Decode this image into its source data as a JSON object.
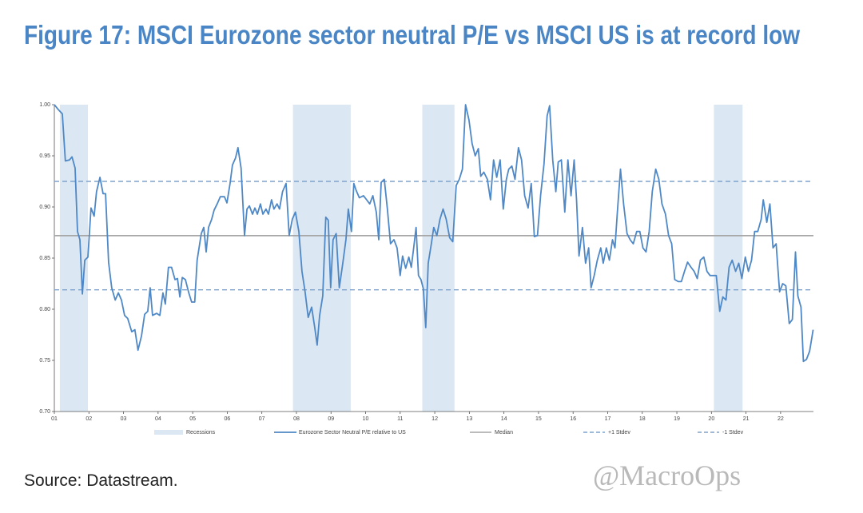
{
  "chart_data": {
    "type": "line",
    "title": "Figure 17: MSCI Eurozone sector neutral P/E vs MSCI US is at record low",
    "source": "Source: Datastream.",
    "watermark": "@MacroOps",
    "xlim": [
      1,
      22.95
    ],
    "xticks": [
      {
        "value": 1,
        "label": "01"
      },
      {
        "value": 2,
        "label": "02"
      },
      {
        "value": 3,
        "label": "03"
      },
      {
        "value": 4,
        "label": "04"
      },
      {
        "value": 5,
        "label": "05"
      },
      {
        "value": 6,
        "label": "06"
      },
      {
        "value": 7,
        "label": "07"
      },
      {
        "value": 8,
        "label": "08"
      },
      {
        "value": 9,
        "label": "09"
      },
      {
        "value": 10,
        "label": "10"
      },
      {
        "value": 11,
        "label": "11"
      },
      {
        "value": 12,
        "label": "12"
      },
      {
        "value": 13,
        "label": "13"
      },
      {
        "value": 14,
        "label": "14"
      },
      {
        "value": 15,
        "label": "15"
      },
      {
        "value": 16,
        "label": "16"
      },
      {
        "value": 17,
        "label": "17"
      },
      {
        "value": 18,
        "label": "18"
      },
      {
        "value": 19,
        "label": "19"
      },
      {
        "value": 20,
        "label": "20"
      },
      {
        "value": 21,
        "label": "21"
      },
      {
        "value": 22,
        "label": "22"
      }
    ],
    "ylim": [
      0.7,
      1.0
    ],
    "yticks": [
      {
        "value": 0.7,
        "label": "0.70"
      },
      {
        "value": 0.75,
        "label": "0.75"
      },
      {
        "value": 0.8,
        "label": "0.80"
      },
      {
        "value": 0.85,
        "label": "0.85"
      },
      {
        "value": 0.9,
        "label": "0.90"
      },
      {
        "value": 0.95,
        "label": "0.95"
      },
      {
        "value": 1.0,
        "label": "1.00"
      }
    ],
    "recessions": {
      "name": "Recessions",
      "color": "#dbe7f3",
      "periods": [
        [
          1.16,
          1.97
        ],
        [
          7.9,
          9.57
        ],
        [
          11.64,
          12.57
        ],
        [
          20.07,
          20.9
        ]
      ]
    },
    "reference_lines": [
      {
        "name": "Median",
        "value": 0.872,
        "color": "#a6a6a6",
        "dashed": false
      },
      {
        "name": "+1 Stdev",
        "value": 0.925,
        "color": "#7fa3cc",
        "dashed": true
      },
      {
        "name": "-1 Stdev",
        "value": 0.819,
        "color": "#7fa3cc",
        "dashed": true
      }
    ],
    "x": [
      1.0,
      1.12,
      1.23,
      1.32,
      1.44,
      1.51,
      1.6,
      1.67,
      1.74,
      1.81,
      1.88,
      1.97,
      2.06,
      2.15,
      2.22,
      2.32,
      2.41,
      2.48,
      2.57,
      2.66,
      2.76,
      2.85,
      2.94,
      3.03,
      3.12,
      3.24,
      3.33,
      3.42,
      3.52,
      3.61,
      3.7,
      3.77,
      3.84,
      3.96,
      4.05,
      4.14,
      4.21,
      4.3,
      4.39,
      4.49,
      4.56,
      4.63,
      4.7,
      4.79,
      4.88,
      4.97,
      5.06,
      5.13,
      5.25,
      5.32,
      5.39,
      5.46,
      5.55,
      5.62,
      5.71,
      5.8,
      5.92,
      5.99,
      6.08,
      6.15,
      6.24,
      6.31,
      6.4,
      6.5,
      6.57,
      6.64,
      6.73,
      6.8,
      6.87,
      6.96,
      7.03,
      7.12,
      7.19,
      7.28,
      7.35,
      7.44,
      7.51,
      7.6,
      7.7,
      7.79,
      7.88,
      7.97,
      8.07,
      8.16,
      8.25,
      8.34,
      8.44,
      8.53,
      8.6,
      8.67,
      8.76,
      8.85,
      8.92,
      8.99,
      9.06,
      9.15,
      9.24,
      9.34,
      9.43,
      9.5,
      9.59,
      9.66,
      9.73,
      9.82,
      9.94,
      10.03,
      10.12,
      10.21,
      10.31,
      10.38,
      10.45,
      10.54,
      10.63,
      10.72,
      10.82,
      10.91,
      11.0,
      11.07,
      11.16,
      11.25,
      11.32,
      11.39,
      11.46,
      11.53,
      11.6,
      11.67,
      11.74,
      11.81,
      11.9,
      11.97,
      12.06,
      12.15,
      12.24,
      12.33,
      12.43,
      12.52,
      12.62,
      12.71,
      12.8,
      12.89,
      12.99,
      13.08,
      13.17,
      13.26,
      13.33,
      13.42,
      13.52,
      13.61,
      13.7,
      13.79,
      13.89,
      13.98,
      14.07,
      14.14,
      14.23,
      14.32,
      14.42,
      14.51,
      14.6,
      14.7,
      14.79,
      14.88,
      14.97,
      15.06,
      15.16,
      15.25,
      15.32,
      15.41,
      15.5,
      15.57,
      15.66,
      15.76,
      15.85,
      15.94,
      16.03,
      16.1,
      16.17,
      16.27,
      16.36,
      16.45,
      16.52,
      16.61,
      16.7,
      16.8,
      16.87,
      16.96,
      17.05,
      17.14,
      17.21,
      17.28,
      17.37,
      17.46,
      17.56,
      17.65,
      17.74,
      17.84,
      17.93,
      18.02,
      18.11,
      18.2,
      18.29,
      18.39,
      18.48,
      18.57,
      18.67,
      18.76,
      18.85,
      18.94,
      19.04,
      19.13,
      19.22,
      19.31,
      19.41,
      19.5,
      19.59,
      19.68,
      19.78,
      19.87,
      19.96,
      20.05,
      20.14,
      20.24,
      20.33,
      20.42,
      20.51,
      20.6,
      20.7,
      20.79,
      20.88,
      20.98,
      21.07,
      21.16,
      21.25,
      21.34,
      21.44,
      21.5,
      21.6,
      21.69,
      21.78,
      21.87,
      21.97,
      22.06,
      22.15,
      22.25,
      22.34,
      22.43,
      22.5,
      22.59,
      22.66,
      22.75,
      22.84,
      22.94
    ],
    "series": [
      {
        "name": "Eurozone Sector Neutral P/E relative to US",
        "color": "#4f88c6",
        "values": [
          1.0,
          0.995,
          0.991,
          0.945,
          0.946,
          0.949,
          0.938,
          0.876,
          0.868,
          0.815,
          0.848,
          0.851,
          0.899,
          0.891,
          0.915,
          0.929,
          0.913,
          0.913,
          0.846,
          0.821,
          0.809,
          0.816,
          0.809,
          0.794,
          0.791,
          0.778,
          0.78,
          0.76,
          0.774,
          0.795,
          0.798,
          0.821,
          0.794,
          0.796,
          0.794,
          0.816,
          0.805,
          0.841,
          0.841,
          0.829,
          0.83,
          0.812,
          0.831,
          0.829,
          0.817,
          0.807,
          0.807,
          0.848,
          0.874,
          0.88,
          0.856,
          0.88,
          0.888,
          0.897,
          0.903,
          0.91,
          0.91,
          0.904,
          0.923,
          0.941,
          0.948,
          0.958,
          0.938,
          0.872,
          0.898,
          0.901,
          0.893,
          0.899,
          0.893,
          0.903,
          0.893,
          0.898,
          0.893,
          0.907,
          0.898,
          0.903,
          0.898,
          0.915,
          0.923,
          0.872,
          0.888,
          0.895,
          0.876,
          0.837,
          0.817,
          0.792,
          0.802,
          0.782,
          0.765,
          0.794,
          0.813,
          0.89,
          0.887,
          0.821,
          0.868,
          0.874,
          0.821,
          0.845,
          0.868,
          0.898,
          0.876,
          0.923,
          0.916,
          0.909,
          0.911,
          0.907,
          0.903,
          0.911,
          0.895,
          0.868,
          0.924,
          0.927,
          0.898,
          0.864,
          0.868,
          0.86,
          0.833,
          0.852,
          0.84,
          0.851,
          0.841,
          0.86,
          0.88,
          0.833,
          0.829,
          0.82,
          0.782,
          0.845,
          0.864,
          0.88,
          0.872,
          0.888,
          0.898,
          0.888,
          0.87,
          0.866,
          0.921,
          0.927,
          0.937,
          1.0,
          0.985,
          0.962,
          0.95,
          0.957,
          0.93,
          0.934,
          0.927,
          0.907,
          0.946,
          0.929,
          0.946,
          0.898,
          0.927,
          0.937,
          0.94,
          0.927,
          0.958,
          0.946,
          0.911,
          0.899,
          0.923,
          0.871,
          0.872,
          0.911,
          0.942,
          0.989,
          0.999,
          0.946,
          0.915,
          0.944,
          0.946,
          0.895,
          0.946,
          0.911,
          0.946,
          0.907,
          0.852,
          0.88,
          0.845,
          0.86,
          0.821,
          0.833,
          0.848,
          0.86,
          0.845,
          0.86,
          0.848,
          0.868,
          0.86,
          0.895,
          0.937,
          0.903,
          0.874,
          0.868,
          0.864,
          0.876,
          0.876,
          0.86,
          0.856,
          0.876,
          0.915,
          0.937,
          0.927,
          0.903,
          0.893,
          0.872,
          0.864,
          0.829,
          0.827,
          0.827,
          0.837,
          0.846,
          0.841,
          0.837,
          0.83,
          0.848,
          0.851,
          0.837,
          0.833,
          0.833,
          0.833,
          0.798,
          0.812,
          0.809,
          0.841,
          0.848,
          0.837,
          0.845,
          0.83,
          0.851,
          0.837,
          0.848,
          0.876,
          0.876,
          0.888,
          0.907,
          0.885,
          0.903,
          0.86,
          0.864,
          0.817,
          0.825,
          0.823,
          0.786,
          0.79,
          0.856,
          0.813,
          0.802,
          0.749,
          0.751,
          0.759,
          0.78
        ]
      }
    ]
  }
}
